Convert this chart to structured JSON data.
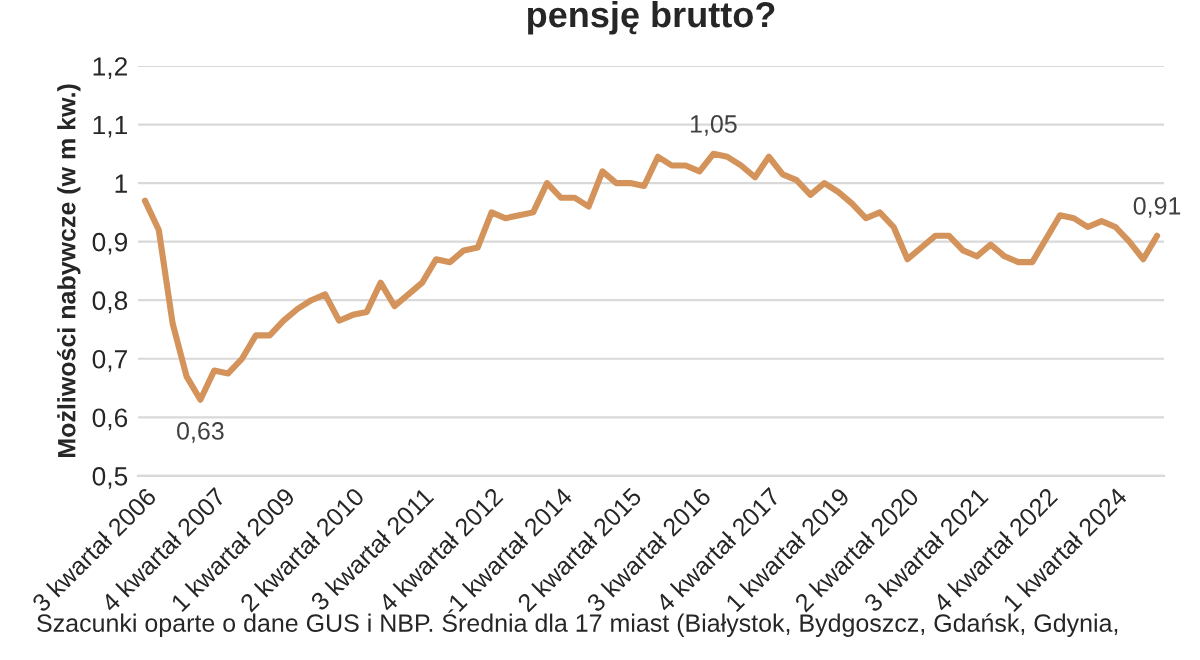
{
  "chart_data": {
    "type": "line",
    "title": "pensję brutto?",
    "ylabel": "Możliwości nabywcze (w m kw.)",
    "categories": [
      "3 kwartał 2006",
      null,
      null,
      null,
      null,
      "4 kwartał 2007",
      null,
      null,
      null,
      null,
      "1 kwartał 2009",
      null,
      null,
      null,
      null,
      "2 kwartał 2010",
      null,
      null,
      null,
      null,
      "3 kwartał 2011",
      null,
      null,
      null,
      null,
      "4 kwartał 2012",
      null,
      null,
      null,
      null,
      "1 kwartał 2014",
      null,
      null,
      null,
      null,
      "2 kwartał 2015",
      null,
      null,
      null,
      null,
      "3 kwartał 2016",
      null,
      null,
      null,
      null,
      "4 kwartał 2017",
      null,
      null,
      null,
      null,
      "1 kwartał 2019",
      null,
      null,
      null,
      null,
      "2 kwartał 2020",
      null,
      null,
      null,
      null,
      "3 kwartał 2021",
      null,
      null,
      null,
      null,
      "4 kwartał 2022",
      null,
      null,
      null,
      null,
      "1 kwartał 2024",
      null,
      null,
      null
    ],
    "series": [
      {
        "color": "#d4935a",
        "values": [
          0.97,
          0.92,
          0.76,
          0.67,
          0.63,
          0.68,
          0.675,
          0.7,
          0.74,
          0.74,
          0.765,
          0.785,
          0.8,
          0.81,
          0.765,
          0.775,
          0.78,
          0.83,
          0.79,
          0.81,
          0.83,
          0.87,
          0.865,
          0.885,
          0.89,
          0.95,
          0.94,
          0.945,
          0.95,
          1.0,
          0.975,
          0.975,
          0.96,
          1.02,
          1.0,
          1.0,
          0.995,
          1.045,
          1.03,
          1.03,
          1.02,
          1.05,
          1.045,
          1.03,
          1.01,
          1.045,
          1.015,
          1.005,
          0.98,
          1.0,
          0.985,
          0.965,
          0.94,
          0.95,
          0.925,
          0.87,
          0.89,
          0.91,
          0.91,
          0.885,
          0.875,
          0.895,
          0.875,
          0.865,
          0.865,
          0.905,
          0.945,
          0.94,
          0.925,
          0.935,
          0.925,
          0.9,
          0.87,
          0.91
        ],
        "value_labels": [
          null,
          null,
          null,
          null,
          "0,63",
          null,
          null,
          null,
          null,
          null,
          null,
          null,
          null,
          null,
          null,
          null,
          null,
          null,
          null,
          null,
          null,
          null,
          null,
          null,
          null,
          null,
          null,
          null,
          null,
          null,
          null,
          null,
          null,
          null,
          null,
          null,
          null,
          null,
          null,
          null,
          null,
          "1,05",
          null,
          null,
          null,
          null,
          null,
          null,
          null,
          null,
          null,
          null,
          null,
          null,
          null,
          null,
          null,
          null,
          null,
          null,
          null,
          null,
          null,
          null,
          null,
          null,
          null,
          null,
          null,
          null,
          null,
          null,
          null,
          "0,91"
        ]
      }
    ],
    "ylim": [
      0.5,
      1.2
    ],
    "yticks": [
      {
        "value": 0.5,
        "label": "0,5"
      },
      {
        "value": 0.6,
        "label": "0,6"
      },
      {
        "value": 0.7,
        "label": "0,7"
      },
      {
        "value": 0.8,
        "label": "0,8"
      },
      {
        "value": 0.9,
        "label": "0,9"
      },
      1,
      {
        "value": 1.1,
        "label": "1,1"
      },
      {
        "value": 1.2,
        "label": "1,2"
      }
    ],
    "grid": "y",
    "legend": false,
    "marker": "none",
    "line_style": "solid",
    "annotations": [
      "Szacunki oparte o dane GUS i NBP. Średnia dla 17 miast (Białystok, Bydgoszcz, Gdańsk, Gdynia,"
    ]
  }
}
